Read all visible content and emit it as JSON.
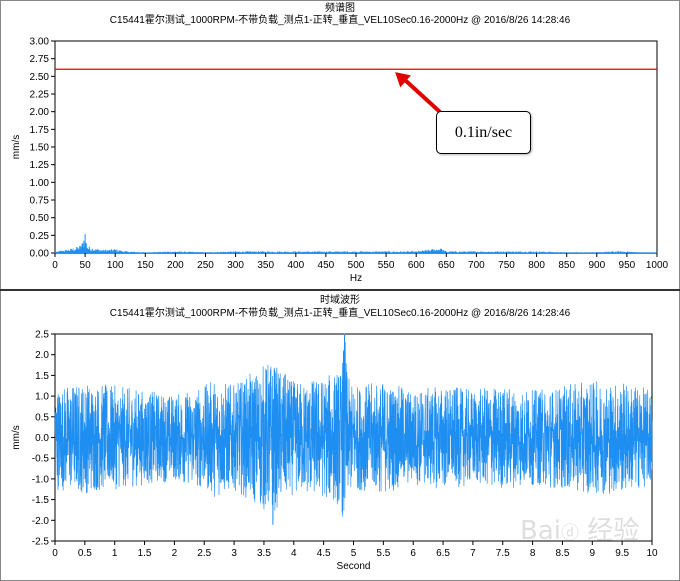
{
  "chart_data": [
    {
      "type": "line",
      "title": "频谱图",
      "subtitle": "C15441霍尔测试_1000RPM-不带负载_测点1-正转_垂直_VEL10Sec0.16-2000Hz @ 2016/8/26 14:28:46",
      "xlabel": "Hz",
      "ylabel": "mm/s",
      "xlim": [
        0,
        1000
      ],
      "ylim": [
        0,
        3.0
      ],
      "xticks": [
        "0",
        "50",
        "100",
        "150",
        "200",
        "250",
        "300",
        "350",
        "400",
        "450",
        "500",
        "550",
        "600",
        "650",
        "700",
        "750",
        "800",
        "850",
        "900",
        "950",
        "1000"
      ],
      "yticks": [
        "0.00",
        "0.25",
        "0.50",
        "0.75",
        "1.00",
        "1.25",
        "1.50",
        "1.75",
        "2.00",
        "2.25",
        "2.50",
        "2.75",
        "3.00"
      ],
      "grid": false,
      "series": [
        {
          "color": "#1f8ef1",
          "x": [
            0,
            10,
            20,
            30,
            40,
            45,
            50,
            52,
            55,
            60,
            70,
            80,
            90,
            100,
            110,
            120,
            150,
            200,
            250,
            300,
            350,
            400,
            450,
            500,
            550,
            600,
            640,
            650,
            700,
            750,
            800,
            850,
            900,
            925,
            950,
            970,
            1000
          ],
          "y": [
            0.01,
            0.03,
            0.04,
            0.06,
            0.08,
            0.12,
            0.27,
            0.15,
            0.08,
            0.07,
            0.05,
            0.04,
            0.04,
            0.05,
            0.03,
            0.02,
            0.01,
            0.02,
            0.01,
            0.02,
            0.02,
            0.02,
            0.02,
            0.02,
            0.02,
            0.02,
            0.06,
            0.02,
            0.02,
            0.02,
            0.02,
            0.01,
            0.01,
            0.02,
            0.02,
            0.01,
            0.01
          ]
        }
      ],
      "reference_line": {
        "y": 2.6,
        "color": "#e00000"
      },
      "annotation": {
        "text": "0.1in/sec",
        "target_x": 565,
        "target_y": 2.56,
        "arrow_color": "#e00000"
      }
    },
    {
      "type": "line",
      "title": "时域波形",
      "subtitle": "C15441霍尔测试_1000RPM-不带负载_测点1-正转_垂直_VEL10Sec0.16-2000Hz @ 2016/8/26 14:28:46",
      "xlabel": "Second",
      "ylabel": "mm/s",
      "xlim": [
        0,
        10
      ],
      "ylim": [
        -2.5,
        2.5
      ],
      "xticks": [
        "0",
        "0.5",
        "1",
        "1.5",
        "2",
        "2.5",
        "3",
        "3.5",
        "4",
        "4.5",
        "5",
        "5.5",
        "6",
        "6.5",
        "7",
        "7.5",
        "8",
        "8.5",
        "9",
        "9.5",
        "10"
      ],
      "yticks": [
        "-2.5",
        "-2.0",
        "-1.5",
        "-1.0",
        "-0.5",
        "0.0",
        "0.5",
        "1.0",
        "1.5",
        "2.0",
        "2.5"
      ],
      "grid": false,
      "series": [
        {
          "color": "#1f8ef1",
          "envelope_x": [
            0,
            0.5,
            1,
            1.5,
            2,
            2.5,
            2.7,
            3,
            3.5,
            3.6,
            4,
            4.5,
            4.8,
            4.85,
            4.9,
            5,
            5.5,
            6,
            6.5,
            7,
            7.5,
            8,
            8.5,
            9,
            9.5,
            10
          ],
          "envelope_y": [
            1.2,
            1.3,
            1.2,
            1.1,
            1.0,
            1.2,
            1.4,
            1.2,
            1.7,
            1.8,
            1.3,
            1.4,
            1.6,
            2.5,
            1.4,
            1.2,
            1.3,
            1.1,
            1.2,
            1.1,
            1.2,
            1.1,
            1.2,
            1.3,
            1.3,
            1.1
          ],
          "min_y": -2.1,
          "min_x": 3.65
        }
      ]
    }
  ],
  "watermark": "Bai 经验"
}
